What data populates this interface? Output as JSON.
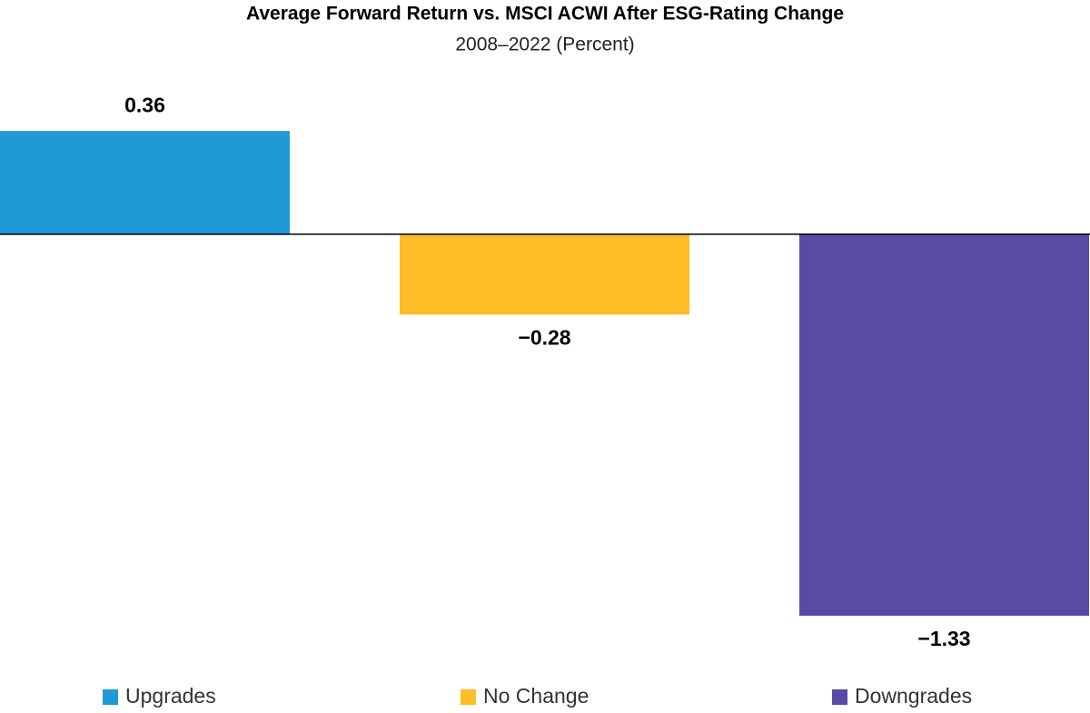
{
  "chart_data": {
    "type": "bar",
    "title": "Average Forward Return vs. MSCI ACWI After ESG-Rating Change",
    "subtitle": "2008–2022 (Percent)",
    "series": [
      {
        "name": "Upgrades",
        "color": "#1f9ad6",
        "values": [
          0.36
        ],
        "value_labels": [
          "0.36"
        ]
      },
      {
        "name": "No Change",
        "color": "#fdbd26",
        "values": [
          -0.28
        ],
        "value_labels": [
          "−0.28"
        ]
      },
      {
        "name": "Downgrades",
        "color": "#5a4aa5",
        "values": [
          -1.33
        ],
        "value_labels": [
          "−1.33"
        ]
      }
    ],
    "ylim": [
      -1.4,
      0.5
    ]
  }
}
